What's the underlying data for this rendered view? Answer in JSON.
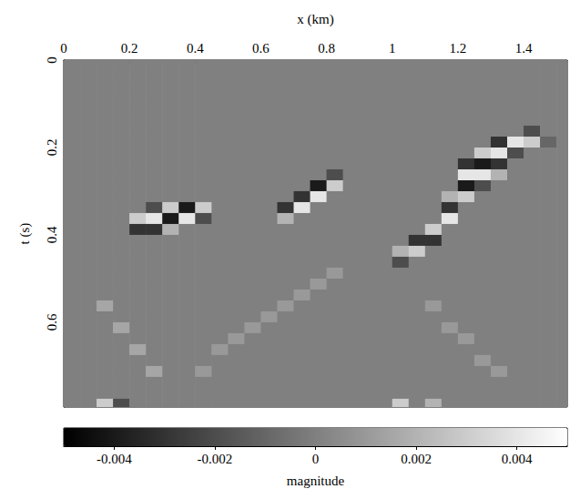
{
  "chart_data": {
    "type": "heatmap",
    "x_label": "x (km)",
    "y_label": "t (s)",
    "xlim": [
      0,
      1.533
    ],
    "xticks": [
      0,
      0.2,
      0.4,
      0.6,
      0.8,
      1,
      1.2,
      1.4
    ],
    "ylim": [
      0,
      0.794
    ],
    "yticks": [
      0,
      0.2,
      0.4,
      0.6
    ],
    "x": [
      0.025,
      0.075,
      0.125,
      0.175,
      0.225,
      0.275,
      0.325,
      0.375,
      0.425,
      0.475,
      0.525,
      0.575,
      0.625,
      0.675,
      0.725,
      0.775,
      0.825,
      0.875,
      0.925,
      0.975,
      1.025,
      1.075,
      1.125,
      1.175,
      1.225,
      1.275,
      1.325,
      1.375,
      1.425,
      1.475,
      1.525
    ],
    "y": [
      0.0125,
      0.0375,
      0.0625,
      0.0875,
      0.1125,
      0.1375,
      0.1625,
      0.1875,
      0.2125,
      0.2375,
      0.2625,
      0.2875,
      0.3125,
      0.3375,
      0.3625,
      0.3875,
      0.4125,
      0.4375,
      0.4625,
      0.4875,
      0.5125,
      0.5375,
      0.5625,
      0.5875,
      0.6125,
      0.6375,
      0.6625,
      0.6875,
      0.7125,
      0.7375,
      0.7625,
      0.7875
    ],
    "values": [
      [
        0,
        0,
        0,
        0,
        0,
        0,
        0,
        0,
        0,
        0,
        0,
        0,
        0,
        0,
        0,
        0,
        0,
        0,
        0,
        0,
        0,
        0,
        0,
        0,
        0,
        0,
        0,
        0,
        0,
        0,
        0
      ],
      [
        0,
        0,
        0,
        0,
        0,
        0,
        0,
        0,
        0,
        0,
        0,
        0,
        0,
        0,
        0,
        0,
        0,
        0,
        0,
        0,
        0,
        0,
        0,
        0,
        0,
        0,
        0,
        0,
        0,
        0,
        0
      ],
      [
        0,
        0,
        0,
        0,
        0,
        0,
        0,
        0,
        0,
        0,
        0,
        0,
        0,
        0,
        0,
        0,
        0,
        0,
        0,
        0,
        0,
        0,
        0,
        0,
        0,
        0,
        0,
        0,
        0,
        0,
        0
      ],
      [
        0,
        0,
        0,
        0,
        0,
        0,
        0,
        0,
        0,
        0,
        0,
        0,
        0,
        0,
        0,
        0,
        0,
        0,
        0,
        0,
        0,
        0,
        0,
        0,
        0,
        0,
        0,
        0,
        0,
        0,
        0
      ],
      [
        0,
        0,
        0,
        0,
        0,
        0,
        0,
        0,
        0,
        0,
        0,
        0,
        0,
        0,
        0,
        0,
        0,
        0,
        0,
        0,
        0,
        0,
        0,
        0,
        0,
        0,
        0,
        0,
        0,
        0,
        0
      ],
      [
        0,
        0,
        0,
        0,
        0,
        0,
        0,
        0,
        0,
        0,
        0,
        0,
        0,
        0,
        0,
        0,
        0,
        0,
        0,
        0,
        0,
        0,
        0,
        0,
        0,
        0,
        0,
        0,
        0,
        0,
        0
      ],
      [
        0,
        0,
        0,
        0,
        0,
        0,
        0,
        0,
        0,
        0,
        0,
        0,
        0,
        0,
        0,
        0,
        0,
        0,
        0,
        0,
        0,
        0,
        0,
        0,
        0,
        0,
        0,
        0,
        -0.002,
        0,
        0
      ],
      [
        0,
        0,
        0,
        0,
        0,
        0,
        0,
        0,
        0,
        0,
        0,
        0,
        0,
        0,
        0,
        0,
        0,
        0,
        0,
        0,
        0,
        0,
        0,
        0,
        0,
        0,
        -0.003,
        0.004,
        0.003,
        -0.001,
        0
      ],
      [
        0,
        0,
        0,
        0,
        0,
        0,
        0,
        0,
        0,
        0,
        0,
        0,
        0,
        0,
        0,
        0,
        0,
        0,
        0,
        0,
        0,
        0,
        0,
        0,
        0,
        0.003,
        0.004,
        -0.002,
        0,
        0,
        0
      ],
      [
        0,
        0,
        0,
        0,
        0,
        0,
        0,
        0,
        0,
        0,
        0,
        0,
        0,
        0,
        0,
        0,
        0,
        0,
        0,
        0,
        0,
        0,
        0,
        0,
        -0.003,
        -0.004,
        -0.003,
        0,
        0,
        0,
        0
      ],
      [
        0,
        0,
        0,
        0,
        0,
        0,
        0,
        0,
        0,
        0,
        0,
        0,
        0,
        0,
        0,
        0,
        -0.002,
        0,
        0,
        0,
        0,
        0,
        0,
        0,
        0.004,
        0.004,
        0.002,
        0,
        0,
        0,
        0
      ],
      [
        0,
        0,
        0,
        0,
        0,
        0,
        0,
        0,
        0,
        0,
        0,
        0,
        0,
        0,
        0,
        -0.004,
        0.003,
        0,
        0,
        0,
        0,
        0,
        0,
        0,
        -0.004,
        -0.002,
        0,
        0,
        0,
        0,
        0
      ],
      [
        0,
        0,
        0,
        0,
        0,
        0,
        0,
        0,
        0,
        0,
        0,
        0,
        0,
        0,
        -0.003,
        0.004,
        0,
        0,
        0,
        0,
        0,
        0,
        0,
        0.002,
        0.003,
        0,
        0,
        0,
        0,
        0,
        0
      ],
      [
        0,
        0,
        0,
        0,
        0,
        -0.002,
        0.003,
        -0.004,
        0.003,
        0,
        0,
        0,
        0,
        -0.003,
        0.004,
        0,
        0,
        0,
        0,
        0,
        0,
        0,
        0,
        -0.003,
        0,
        0,
        0,
        0,
        0,
        0,
        0
      ],
      [
        0,
        0,
        0,
        0,
        0.003,
        0.004,
        -0.004,
        0.004,
        -0.002,
        0,
        0,
        0,
        0,
        0.002,
        0,
        0,
        0,
        0,
        0,
        0,
        0,
        0,
        0,
        0.004,
        0,
        0,
        0,
        0,
        0,
        0,
        0
      ],
      [
        0,
        0,
        0,
        0,
        -0.003,
        -0.003,
        0.002,
        0,
        0,
        0,
        0,
        0,
        0,
        0,
        0,
        0,
        0,
        0,
        0,
        0,
        0,
        0,
        0.003,
        0,
        0,
        0,
        0,
        0,
        0,
        0,
        0
      ],
      [
        0,
        0,
        0,
        0,
        0,
        0,
        0,
        0,
        0,
        0,
        0,
        0,
        0,
        0,
        0,
        0,
        0,
        0,
        0,
        0,
        0,
        -0.003,
        -0.003,
        0,
        0,
        0,
        0,
        0,
        0,
        0,
        0
      ],
      [
        0,
        0,
        0,
        0,
        0,
        0,
        0,
        0,
        0,
        0,
        0,
        0,
        0,
        0,
        0,
        0,
        0,
        0,
        0,
        0,
        0.002,
        0.003,
        0,
        0,
        0,
        0,
        0,
        0,
        0,
        0,
        0
      ],
      [
        0,
        0,
        0,
        0,
        0,
        0,
        0,
        0,
        0,
        0,
        0,
        0,
        0,
        0,
        0,
        0,
        0,
        0,
        0,
        0,
        -0.002,
        0,
        0,
        0,
        0,
        0,
        0,
        0,
        0,
        0,
        0
      ],
      [
        0,
        0,
        0,
        0,
        0,
        0,
        0,
        0,
        0,
        0,
        0,
        0,
        0,
        0,
        0,
        0,
        0.001,
        0,
        0,
        0,
        0,
        0,
        0,
        0,
        0,
        0,
        0,
        0,
        0,
        0,
        0
      ],
      [
        0,
        0,
        0,
        0,
        0,
        0,
        0,
        0,
        0,
        0,
        0,
        0,
        0,
        0,
        0,
        0.001,
        0,
        0,
        0,
        0,
        0,
        0,
        0,
        0,
        0,
        0,
        0,
        0,
        0,
        0,
        0
      ],
      [
        0,
        0,
        0,
        0,
        0,
        0,
        0,
        0,
        0,
        0,
        0,
        0,
        0,
        0,
        0.001,
        0,
        0,
        0,
        0,
        0,
        0,
        0,
        0,
        0,
        0,
        0,
        0,
        0,
        0,
        0,
        0
      ],
      [
        0,
        0,
        0.0015,
        0,
        0,
        0,
        0,
        0,
        0,
        0,
        0,
        0,
        0,
        0.001,
        0,
        0,
        0,
        0,
        0,
        0,
        0,
        0,
        0.001,
        0,
        0,
        0,
        0,
        0,
        0,
        0,
        0
      ],
      [
        0,
        0,
        0,
        0,
        0,
        0,
        0,
        0,
        0,
        0,
        0,
        0,
        0.001,
        0,
        0,
        0,
        0,
        0,
        0,
        0,
        0,
        0,
        0,
        0,
        0,
        0,
        0,
        0,
        0,
        0,
        0
      ],
      [
        0,
        0,
        0,
        0.0015,
        0,
        0,
        0,
        0,
        0,
        0,
        0,
        0.001,
        0,
        0,
        0,
        0,
        0,
        0,
        0,
        0,
        0,
        0,
        0,
        0.001,
        0,
        0,
        0,
        0,
        0,
        0,
        0
      ],
      [
        0,
        0,
        0,
        0,
        0,
        0,
        0,
        0,
        0,
        0,
        0.001,
        0,
        0,
        0,
        0,
        0,
        0,
        0,
        0,
        0,
        0,
        0,
        0,
        0,
        0.001,
        0,
        0,
        0,
        0,
        0,
        0
      ],
      [
        0,
        0,
        0,
        0,
        0.0015,
        0,
        0,
        0,
        0,
        0.001,
        0,
        0,
        0,
        0,
        0,
        0,
        0,
        0,
        0,
        0,
        0,
        0,
        0,
        0,
        0,
        0,
        0,
        0,
        0,
        0,
        0
      ],
      [
        0,
        0,
        0,
        0,
        0,
        0,
        0,
        0,
        0,
        0,
        0,
        0,
        0,
        0,
        0,
        0,
        0,
        0,
        0,
        0,
        0,
        0,
        0,
        0,
        0,
        0.001,
        0,
        0,
        0,
        0,
        0
      ],
      [
        0,
        0,
        0,
        0,
        0,
        0.0015,
        0,
        0,
        0.001,
        0,
        0,
        0,
        0,
        0,
        0,
        0,
        0,
        0,
        0,
        0,
        0,
        0,
        0,
        0,
        0,
        0,
        0.001,
        0,
        0,
        0,
        0
      ],
      [
        0,
        0,
        0,
        0,
        0,
        0,
        0,
        0,
        0,
        0,
        0,
        0,
        0,
        0,
        0,
        0,
        0,
        0,
        0,
        0,
        0,
        0,
        0,
        0,
        0,
        0,
        0,
        0,
        0,
        0,
        0
      ],
      [
        0,
        0,
        0,
        0,
        0,
        0,
        0,
        0,
        0,
        0,
        0,
        0,
        0,
        0,
        0,
        0,
        0,
        0,
        0,
        0,
        0,
        0,
        0,
        0,
        0,
        0,
        0,
        0,
        0,
        0,
        0
      ],
      [
        0,
        0,
        0.003,
        -0.002,
        0,
        0,
        0,
        0,
        0,
        0,
        0,
        0,
        0,
        0,
        0,
        0,
        0,
        0,
        0,
        0,
        0.003,
        0,
        0.002,
        0,
        0,
        0,
        0,
        0,
        0,
        0,
        0
      ]
    ],
    "colorbar": {
      "label": "magnitude",
      "lim": [
        -0.005,
        0.005
      ],
      "ticks": [
        -0.004,
        -0.002,
        0,
        0.002,
        0.004
      ],
      "colors": [
        "#000000",
        "#ffffff"
      ]
    }
  }
}
